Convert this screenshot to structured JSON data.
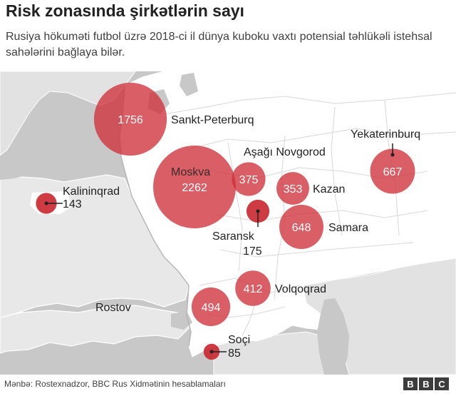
{
  "header": {
    "title": "Risk zonasında şirkətlərin sayı",
    "subtitle": "Rusiya hökuməti futbol üzrə 2018-ci il dünya kuboku vaxtı potensial təhlükəli istehsal sahələrini bağlaya bilər."
  },
  "map": {
    "cities": [
      {
        "name": "Sankt-Peterburq",
        "value": "1756"
      },
      {
        "name": "Moskva",
        "value": "2262"
      },
      {
        "name": "Aşağı Novgorod",
        "value": "375"
      },
      {
        "name": "Kazan",
        "value": "353"
      },
      {
        "name": "Yekaterinburq",
        "value": "667"
      },
      {
        "name": "Kalininqrad",
        "value": "143"
      },
      {
        "name": "Saransk",
        "value": "175"
      },
      {
        "name": "Samara",
        "value": "648"
      },
      {
        "name": "Volqoqrad",
        "value": "412"
      },
      {
        "name": "Rostov",
        "value": "494"
      },
      {
        "name": "Soçi",
        "value": "85"
      }
    ],
    "colors": {
      "land": "#ffffff",
      "sea": "#c8c8c8",
      "neighbours": "#dcdcdc",
      "bubble": "#d0313a"
    }
  },
  "footer": {
    "source": "Mənbə: Rostexnadzor, BBC Rus Xidmətinin hesablamaları",
    "logo_letters": [
      "B",
      "B",
      "C"
    ]
  }
}
